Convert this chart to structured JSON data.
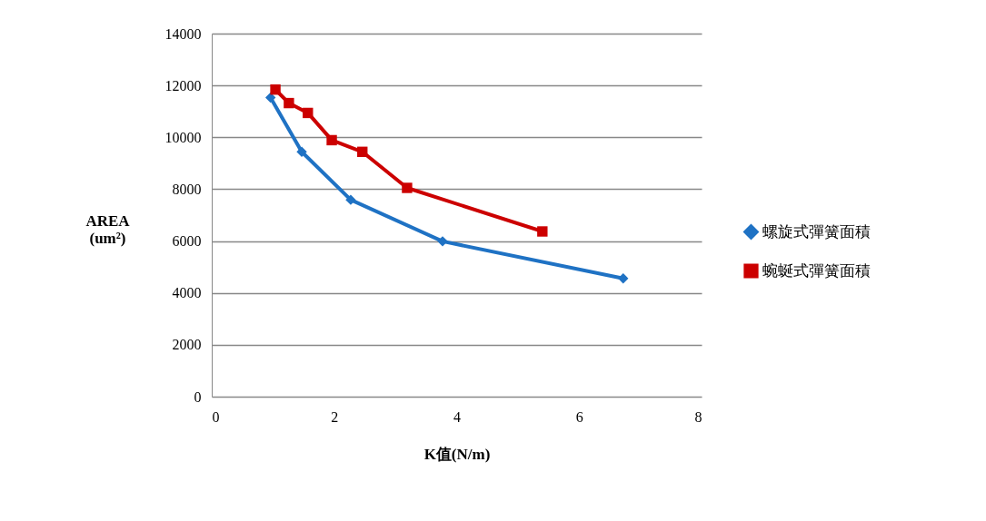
{
  "chart_data": {
    "type": "line",
    "xlabel": "K值(N/m)",
    "ylabel": "AREA (um²)",
    "xlim": [
      0,
      8
    ],
    "xticks": [
      0,
      2,
      4,
      6,
      8
    ],
    "ylim": [
      0,
      14000
    ],
    "yticks": [
      0,
      2000,
      4000,
      6000,
      8000,
      10000,
      12000,
      14000
    ],
    "grid": "y",
    "legend": "right",
    "series": [
      {
        "name": "螺旋式彈簧面積",
        "color": "#1f72c4",
        "marker": "diamond",
        "x": [
          0.96,
          1.47,
          2.27,
          3.77,
          6.72
        ],
        "values": [
          11530,
          9440,
          7590,
          5990,
          4560
        ]
      },
      {
        "name": "蜿蜒式彈簧面積",
        "color": "#cc0000",
        "marker": "square",
        "x": [
          1.04,
          1.26,
          1.57,
          1.96,
          2.46,
          3.19,
          5.4
        ],
        "values": [
          11840,
          11320,
          10940,
          9890,
          9440,
          8050,
          6370
        ]
      }
    ]
  }
}
